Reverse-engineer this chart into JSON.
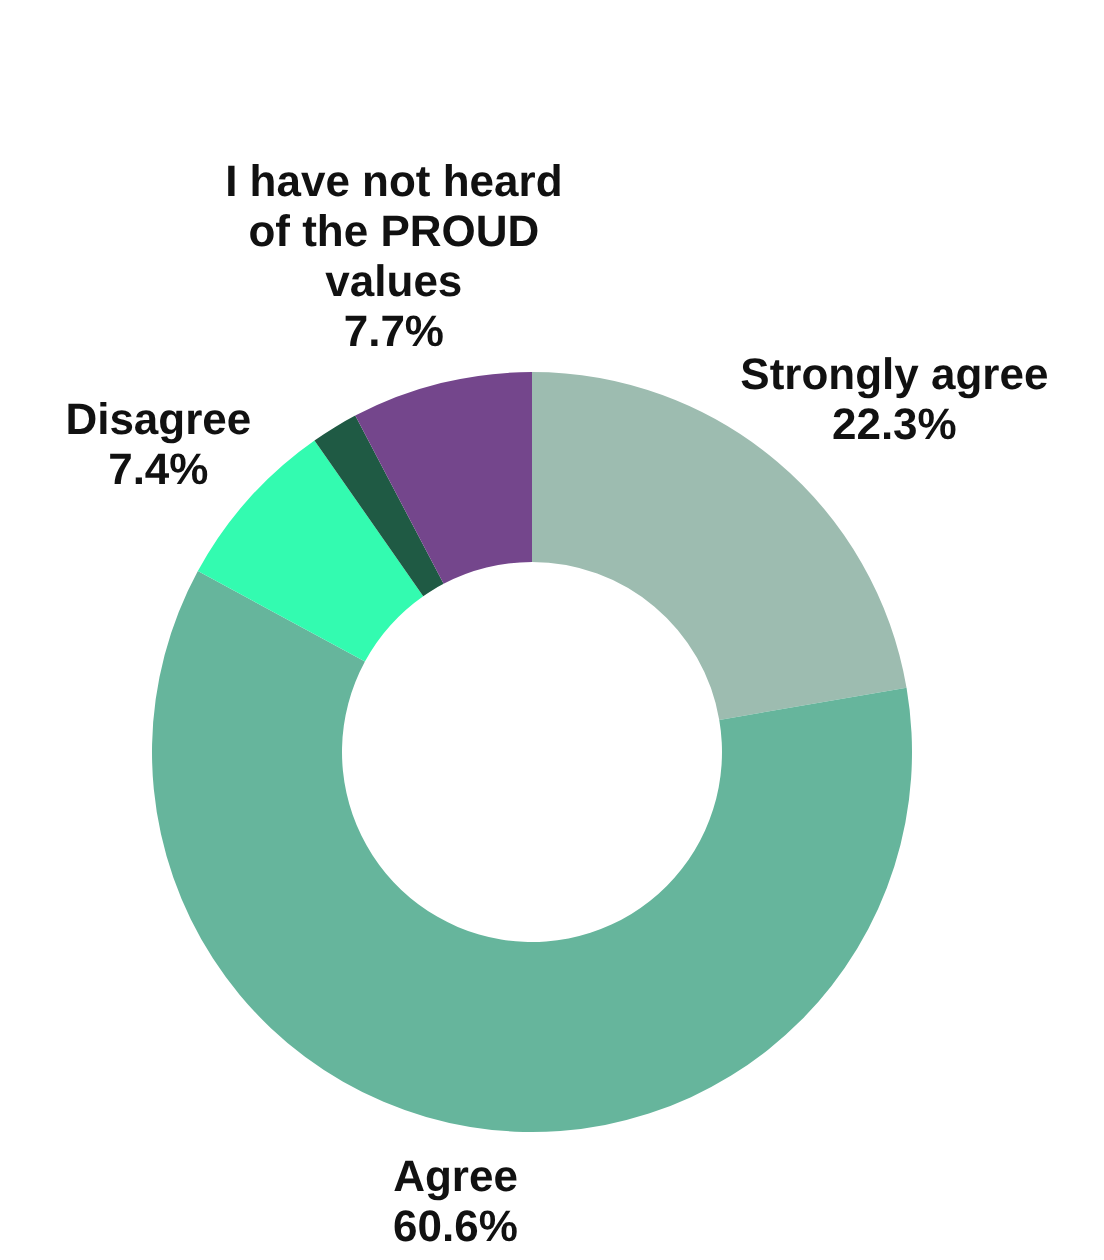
{
  "chart_data": {
    "type": "donut",
    "categories": [
      "Strongly agree",
      "Agree",
      "Disagree",
      null,
      "I have not heard of the PROUD values"
    ],
    "values": [
      22.3,
      60.6,
      7.4,
      2.0,
      7.7
    ],
    "value_labels": [
      "22.3%",
      "60.6%",
      "7.4%",
      null,
      "7.7%"
    ],
    "colors": [
      "#9dbcb0",
      "#66b59c",
      "#33fbb0",
      "#1f5a44",
      "#74468c"
    ],
    "legend": false
  }
}
